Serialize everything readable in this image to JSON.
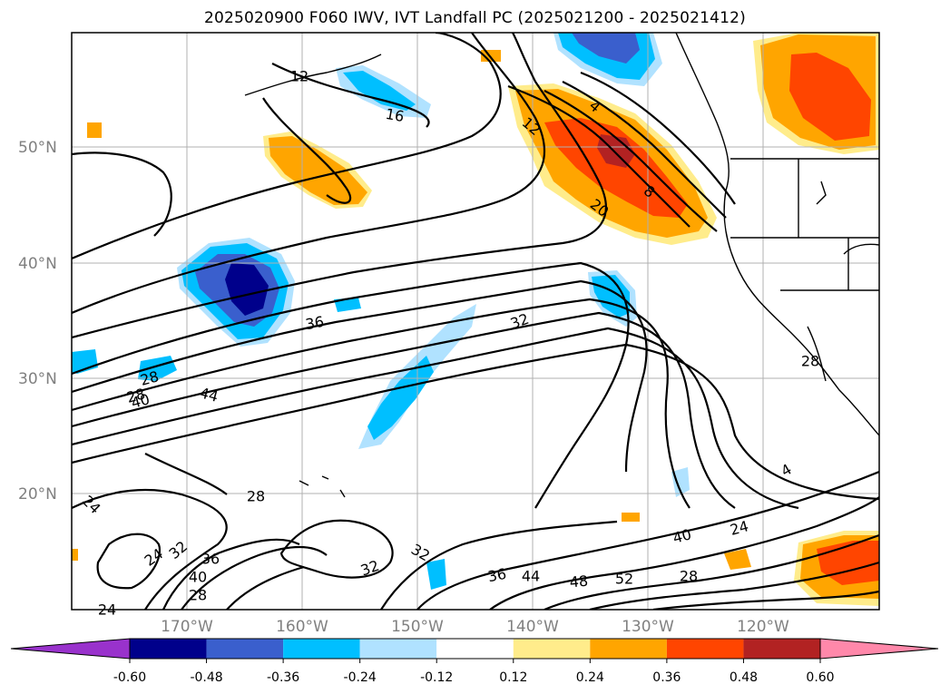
{
  "title": "2025020900 F060 IWV, IVT Landfall PC (2025021200 - 2025021412)",
  "map": {
    "lat_labels": [
      "50°N",
      "40°N",
      "30°N",
      "20°N"
    ],
    "lon_labels": [
      "170°W",
      "160°W",
      "150°W",
      "140°W",
      "130°W",
      "120°W"
    ],
    "contour_labels": [
      "12",
      "16",
      "4",
      "12",
      "20",
      "8",
      "36",
      "32",
      "28",
      "40",
      "44",
      "28",
      "24",
      "24",
      "28",
      "32",
      "36",
      "40",
      "28",
      "24",
      "32",
      "32",
      "36",
      "44",
      "48",
      "52",
      "28",
      "40",
      "24",
      "4",
      "28"
    ]
  },
  "colorbar": {
    "levels": [
      "-0.60",
      "-0.48",
      "-0.36",
      "-0.24",
      "-0.12",
      "0.12",
      "0.24",
      "0.36",
      "0.48",
      "0.60"
    ],
    "colors": [
      "#9932cc",
      "#00008b",
      "#3a5fcd",
      "#00bfff",
      "#b0e2ff",
      "#ffffff",
      "#ffec8b",
      "#ffa500",
      "#ff4500",
      "#b22222",
      "#ff88aa"
    ]
  },
  "colors": {
    "gridline": "#b0b0b0",
    "contour": "#000000",
    "label_gray": "#808080"
  }
}
